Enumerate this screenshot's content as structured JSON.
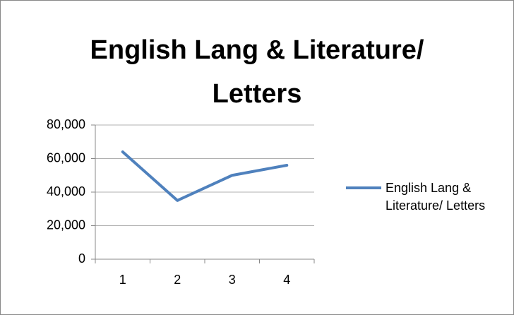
{
  "chart_data": {
    "type": "line",
    "title": "English Lang & Literature/ Letters",
    "categories": [
      "1",
      "2",
      "3",
      "4"
    ],
    "series": [
      {
        "name": "English Lang & Literature/ Letters",
        "color": "#4f81bd",
        "values": [
          64000,
          35000,
          50000,
          56000
        ]
      }
    ],
    "ylim": [
      0,
      80000
    ],
    "yticks": [
      0,
      {
        "value": 20000,
        "label": "20,000"
      },
      {
        "value": 40000,
        "label": "40,000"
      },
      {
        "value": 60000,
        "label": "60,000"
      },
      {
        "value": 80000,
        "label": "80,000"
      }
    ],
    "grid": true,
    "legend": "right"
  }
}
